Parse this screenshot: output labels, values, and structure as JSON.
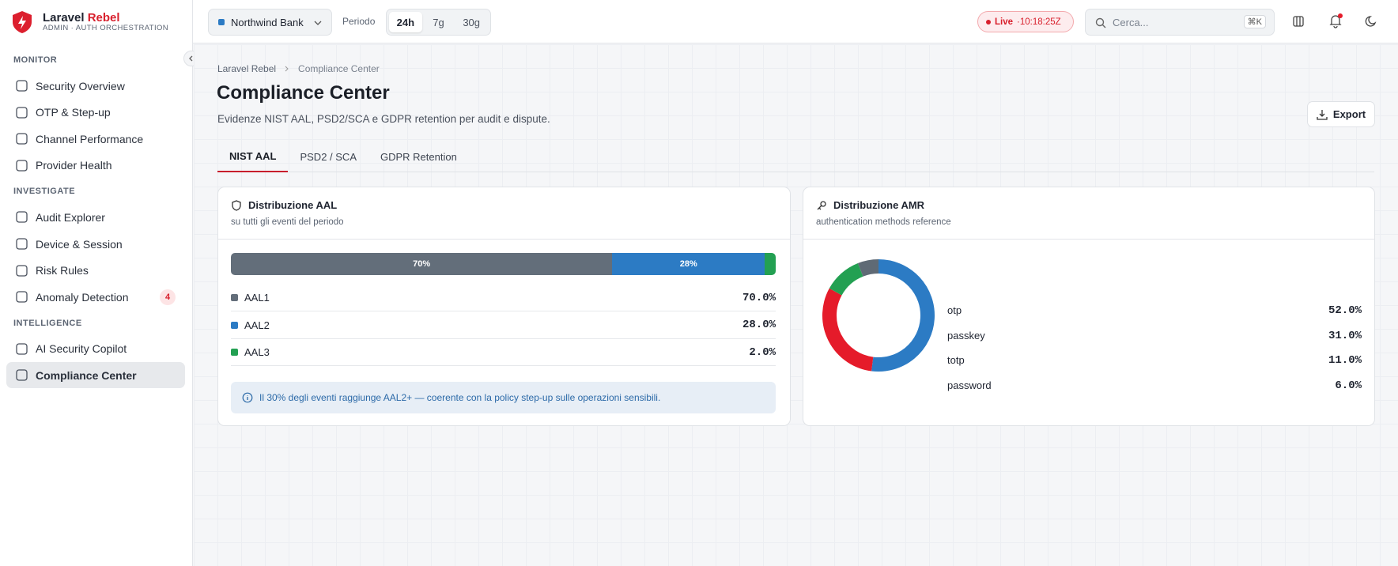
{
  "brand": {
    "name": "Laravel",
    "accent": "Rebel",
    "subtitle": "ADMIN · AUTH ORCHESTRATION"
  },
  "sidebar": {
    "sections": [
      {
        "title": "MONITOR",
        "items": [
          {
            "label": "Security Overview"
          },
          {
            "label": "OTP & Step-up"
          },
          {
            "label": "Channel Performance"
          },
          {
            "label": "Provider Health"
          }
        ]
      },
      {
        "title": "INVESTIGATE",
        "items": [
          {
            "label": "Audit Explorer"
          },
          {
            "label": "Device & Session"
          },
          {
            "label": "Risk Rules"
          },
          {
            "label": "Anomaly Detection",
            "badge": 4
          }
        ]
      },
      {
        "title": "INTELLIGENCE",
        "items": [
          {
            "label": "AI Security Copilot"
          },
          {
            "label": "Compliance Center",
            "active": true
          }
        ]
      }
    ]
  },
  "topbar": {
    "tenant": "Northwind Bank",
    "period_label": "Periodo",
    "periods": [
      "24h",
      "7g",
      "30g"
    ],
    "live": "Live",
    "time": "·10:18:25Z",
    "search": "Cerca...",
    "shortcut": "⌘K"
  },
  "breadcrumb": [
    "Laravel Rebel",
    "Compliance Center"
  ],
  "page": {
    "title": "Compliance Center",
    "description": "Evidenze NIST AAL, PSD2/SCA e GDPR retention per audit e dispute.",
    "export": "Export"
  },
  "tabs": [
    "NIST AAL",
    "PSD2 / SCA",
    "GDPR Retention"
  ],
  "chart_data": [
    {
      "type": "bar",
      "stacked": true,
      "orientation": "horizontal",
      "title": "Distribuzione AAL",
      "subtitle": "su tutti gli eventi del periodo",
      "xlim": [
        0,
        100
      ],
      "series": [
        {
          "name": "AAL1",
          "color": "#636e7a",
          "values": [
            70
          ],
          "value_labels": [
            "70.0%"
          ],
          "bar_labels": [
            "70%"
          ]
        },
        {
          "name": "AAL2",
          "color": "#2c7bc4",
          "values": [
            28
          ],
          "value_labels": [
            "28.0%"
          ],
          "bar_labels": [
            "28%"
          ]
        },
        {
          "name": "AAL3",
          "color": "#23a052",
          "values": [
            2
          ],
          "value_labels": [
            "2.0%"
          ],
          "bar_labels": [
            null
          ]
        }
      ],
      "note": "Il 30% degli eventi raggiunge AAL2+ — coerente con la policy step-up sulle operazioni sensibili."
    },
    {
      "type": "pie",
      "donut": true,
      "title": "Distribuzione AMR",
      "subtitle": "authentication methods reference",
      "categories": [
        "otp",
        "passkey",
        "totp",
        "password"
      ],
      "values": [
        52,
        31,
        11,
        6
      ],
      "value_labels": [
        "52.0%",
        "31.0%",
        "11.0%",
        "6.0%"
      ],
      "colors": [
        "#2c7bc4",
        "#e51b2a",
        "#23a052",
        "#5f6a75"
      ]
    }
  ]
}
